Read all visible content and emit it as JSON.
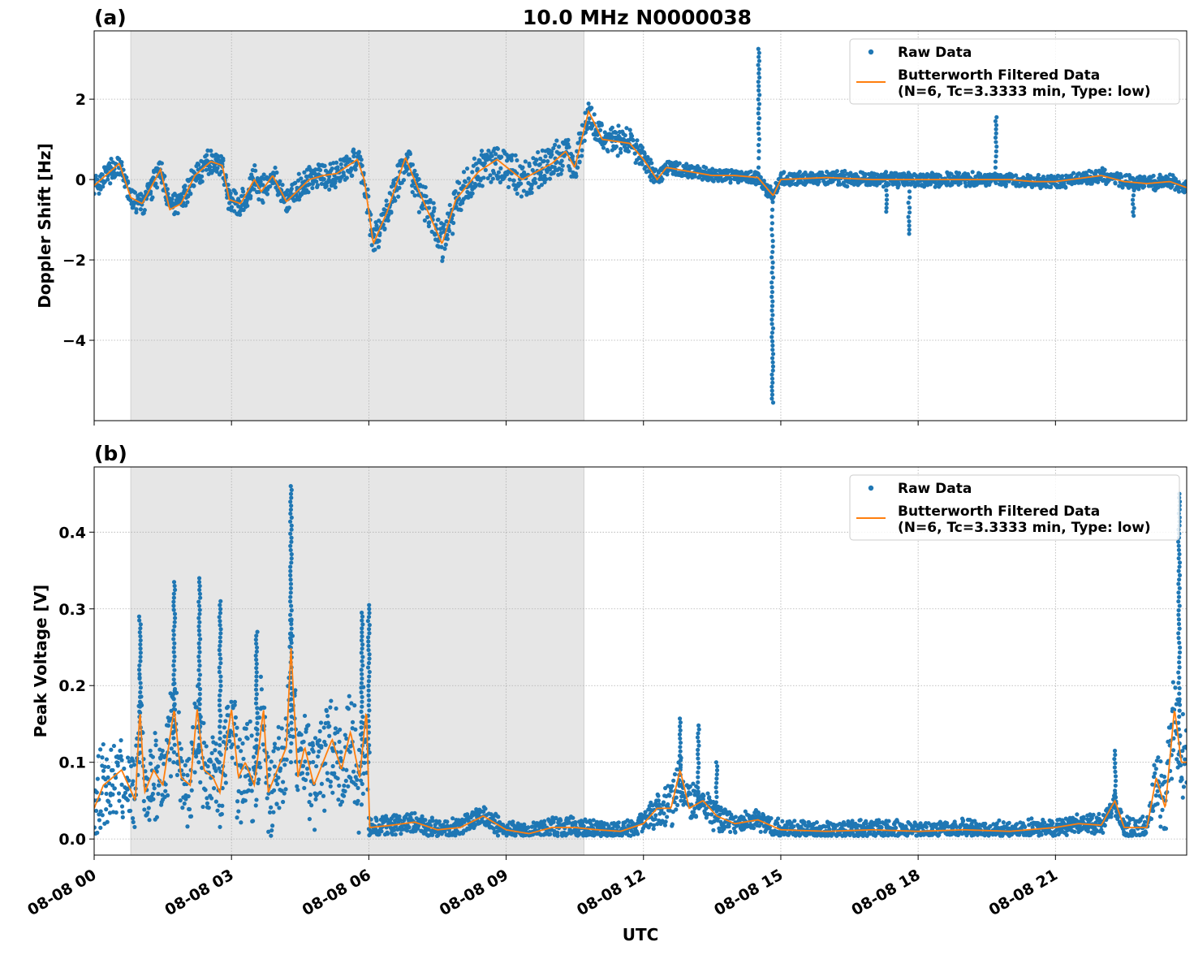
{
  "title": "10.0 MHz N0000038",
  "colors": {
    "raw": "#1f77b4",
    "filtered": "#ff7f0e",
    "shade": "#e6e6e6",
    "grid": "#b0b0b0"
  },
  "chart_data": [
    {
      "type": "scatter+line",
      "panel_label": "(a)",
      "ylabel": "Doppler Shift [Hz]",
      "xlabel": "",
      "xlim": [
        "08-08 00:00",
        "08-08 23:52"
      ],
      "ylim": [
        -6.0,
        3.7
      ],
      "yticks": [
        -4,
        -2,
        0,
        2
      ],
      "ytick_labels": [
        "−4",
        "−2",
        "0",
        "2"
      ],
      "xticks": [
        "00:00",
        "03:00",
        "06:00",
        "09:00",
        "12:00",
        "15:00",
        "18:00",
        "21:00"
      ],
      "grid": true,
      "shaded_interval": [
        "00:48",
        "10:42"
      ],
      "legend": {
        "placement": "top-right",
        "entries": [
          "Raw Data",
          "Butterworth Filtered Data",
          "(N=6, Tc=3.3333 min, Type: low)"
        ]
      },
      "filtered": [
        [
          "00:00",
          -0.15
        ],
        [
          "00:33",
          0.4
        ],
        [
          "00:48",
          -0.45
        ],
        [
          "01:03",
          -0.6
        ],
        [
          "01:27",
          0.25
        ],
        [
          "01:39",
          -0.75
        ],
        [
          "01:54",
          -0.6
        ],
        [
          "02:12",
          0.1
        ],
        [
          "02:33",
          0.45
        ],
        [
          "02:48",
          0.35
        ],
        [
          "02:57",
          -0.5
        ],
        [
          "03:12",
          -0.6
        ],
        [
          "03:30",
          0.0
        ],
        [
          "03:39",
          -0.3
        ],
        [
          "03:54",
          0.1
        ],
        [
          "04:12",
          -0.55
        ],
        [
          "04:42",
          0.0
        ],
        [
          "05:00",
          0.1
        ],
        [
          "05:18",
          0.15
        ],
        [
          "05:45",
          0.5
        ],
        [
          "05:54",
          0.0
        ],
        [
          "06:06",
          -1.6
        ],
        [
          "06:24",
          -0.8
        ],
        [
          "06:48",
          0.55
        ],
        [
          "07:06",
          -0.3
        ],
        [
          "07:36",
          -1.6
        ],
        [
          "07:54",
          -0.5
        ],
        [
          "08:24",
          0.2
        ],
        [
          "08:48",
          0.5
        ],
        [
          "09:21",
          0.0
        ],
        [
          "10:00",
          0.4
        ],
        [
          "10:18",
          0.7
        ],
        [
          "10:30",
          0.3
        ],
        [
          "10:48",
          1.7
        ],
        [
          "11:06",
          1.0
        ],
        [
          "11:42",
          0.9
        ],
        [
          "12:00",
          0.5
        ],
        [
          "12:18",
          0.0
        ],
        [
          "12:30",
          0.3
        ],
        [
          "13:00",
          0.2
        ],
        [
          "13:30",
          0.1
        ],
        [
          "14:00",
          0.1
        ],
        [
          "14:30",
          0.05
        ],
        [
          "14:50",
          -0.4
        ],
        [
          "15:00",
          0.0
        ],
        [
          "16:00",
          0.05
        ],
        [
          "17:00",
          0.0
        ],
        [
          "18:00",
          0.0
        ],
        [
          "19:00",
          0.0
        ],
        [
          "20:00",
          0.0
        ],
        [
          "20:30",
          -0.05
        ],
        [
          "21:00",
          -0.05
        ],
        [
          "22:00",
          0.1
        ],
        [
          "22:30",
          -0.05
        ],
        [
          "23:00",
          -0.1
        ],
        [
          "23:30",
          -0.05
        ],
        [
          "23:52",
          -0.2
        ]
      ],
      "raw_spread": [
        [
          "00:00",
          0.35
        ],
        [
          "06:00",
          0.4
        ],
        [
          "07:36",
          0.6
        ],
        [
          "10:48",
          0.5
        ],
        [
          "12:00",
          0.35
        ],
        [
          "12:30",
          0.2
        ],
        [
          "23:52",
          0.2
        ]
      ],
      "raw_outliers": [
        {
          "x": "14:31",
          "from": 0.3,
          "to": 3.25
        },
        {
          "x": "14:49",
          "from": -0.3,
          "to": -5.55
        },
        {
          "x": "19:42",
          "from": 0.1,
          "to": 1.55
        },
        {
          "x": "17:48",
          "from": -0.1,
          "to": -1.35
        },
        {
          "x": "17:18",
          "from": -0.1,
          "to": -0.8
        },
        {
          "x": "22:42",
          "from": -0.1,
          "to": -0.9
        }
      ]
    },
    {
      "type": "scatter+line",
      "panel_label": "(b)",
      "ylabel": "Peak Voltage [V]",
      "xlabel": "UTC",
      "xlim": [
        "08-08 00:00",
        "08-08 23:52"
      ],
      "ylim": [
        -0.021,
        0.485
      ],
      "yticks": [
        0.0,
        0.1,
        0.2,
        0.3,
        0.4
      ],
      "ytick_labels": [
        "0.0",
        "0.1",
        "0.2",
        "0.3",
        "0.4"
      ],
      "xticks": [
        "00:00",
        "03:00",
        "06:00",
        "09:00",
        "12:00",
        "15:00",
        "18:00",
        "21:00"
      ],
      "xtick_labels": [
        "08-08 00",
        "08-08 03",
        "08-08 06",
        "08-08 09",
        "08-08 12",
        "08-08 15",
        "08-08 18",
        "08-08 21"
      ],
      "grid": true,
      "shaded_interval": [
        "00:48",
        "10:42"
      ],
      "legend": {
        "placement": "top-right",
        "entries": [
          "Raw Data",
          "Butterworth Filtered Data",
          "(N=6, Tc=3.3333 min, Type: low)"
        ]
      },
      "filtered": [
        [
          "00:00",
          0.04
        ],
        [
          "00:12",
          0.07
        ],
        [
          "00:24",
          0.08
        ],
        [
          "00:36",
          0.09
        ],
        [
          "00:45",
          0.07
        ],
        [
          "00:54",
          0.05
        ],
        [
          "01:00",
          0.17
        ],
        [
          "01:06",
          0.06
        ],
        [
          "01:18",
          0.09
        ],
        [
          "01:30",
          0.07
        ],
        [
          "01:45",
          0.17
        ],
        [
          "01:54",
          0.08
        ],
        [
          "02:06",
          0.07
        ],
        [
          "02:15",
          0.17
        ],
        [
          "02:24",
          0.09
        ],
        [
          "02:36",
          0.08
        ],
        [
          "02:45",
          0.06
        ],
        [
          "02:54",
          0.13
        ],
        [
          "03:00",
          0.17
        ],
        [
          "03:09",
          0.08
        ],
        [
          "03:18",
          0.1
        ],
        [
          "03:30",
          0.07
        ],
        [
          "03:42",
          0.17
        ],
        [
          "03:48",
          0.06
        ],
        [
          "04:00",
          0.09
        ],
        [
          "04:12",
          0.12
        ],
        [
          "04:18",
          0.25
        ],
        [
          "04:27",
          0.08
        ],
        [
          "04:36",
          0.12
        ],
        [
          "04:48",
          0.07
        ],
        [
          "05:00",
          0.1
        ],
        [
          "05:12",
          0.13
        ],
        [
          "05:24",
          0.09
        ],
        [
          "05:36",
          0.14
        ],
        [
          "05:48",
          0.08
        ],
        [
          "05:57",
          0.17
        ],
        [
          "06:01",
          0.015
        ],
        [
          "06:30",
          0.018
        ],
        [
          "07:00",
          0.022
        ],
        [
          "07:30",
          0.012
        ],
        [
          "08:00",
          0.015
        ],
        [
          "08:30",
          0.03
        ],
        [
          "09:00",
          0.012
        ],
        [
          "09:30",
          0.007
        ],
        [
          "10:00",
          0.015
        ],
        [
          "10:30",
          0.015
        ],
        [
          "11:00",
          0.012
        ],
        [
          "11:30",
          0.01
        ],
        [
          "12:00",
          0.02
        ],
        [
          "12:18",
          0.04
        ],
        [
          "12:36",
          0.04
        ],
        [
          "12:48",
          0.09
        ],
        [
          "13:00",
          0.04
        ],
        [
          "13:18",
          0.05
        ],
        [
          "13:36",
          0.03
        ],
        [
          "14:00",
          0.02
        ],
        [
          "14:30",
          0.025
        ],
        [
          "15:00",
          0.012
        ],
        [
          "16:00",
          0.01
        ],
        [
          "17:00",
          0.012
        ],
        [
          "18:00",
          0.01
        ],
        [
          "19:00",
          0.012
        ],
        [
          "20:00",
          0.01
        ],
        [
          "21:00",
          0.015
        ],
        [
          "21:30",
          0.02
        ],
        [
          "22:00",
          0.018
        ],
        [
          "22:18",
          0.05
        ],
        [
          "22:30",
          0.015
        ],
        [
          "23:00",
          0.015
        ],
        [
          "23:12",
          0.08
        ],
        [
          "23:24",
          0.04
        ],
        [
          "23:36",
          0.17
        ],
        [
          "23:45",
          0.1
        ],
        [
          "23:52",
          0.1
        ]
      ],
      "raw_spread": [
        [
          "00:00",
          0.06
        ],
        [
          "06:00",
          0.08
        ],
        [
          "06:01",
          0.015
        ],
        [
          "12:00",
          0.015
        ],
        [
          "12:48",
          0.04
        ],
        [
          "14:00",
          0.015
        ],
        [
          "23:00",
          0.015
        ],
        [
          "23:36",
          0.08
        ],
        [
          "23:52",
          0.06
        ]
      ],
      "raw_outliers": [
        {
          "x": "01:00",
          "from": 0.1,
          "to": 0.29
        },
        {
          "x": "01:45",
          "from": 0.1,
          "to": 0.335
        },
        {
          "x": "02:18",
          "from": 0.1,
          "to": 0.34
        },
        {
          "x": "02:45",
          "from": 0.1,
          "to": 0.31
        },
        {
          "x": "03:33",
          "from": 0.1,
          "to": 0.27
        },
        {
          "x": "04:18",
          "from": 0.1,
          "to": 0.46
        },
        {
          "x": "05:51",
          "from": 0.1,
          "to": 0.295
        },
        {
          "x": "06:00",
          "from": 0.1,
          "to": 0.305
        },
        {
          "x": "12:48",
          "from": 0.05,
          "to": 0.157
        },
        {
          "x": "13:12",
          "from": 0.04,
          "to": 0.148
        },
        {
          "x": "13:36",
          "from": 0.03,
          "to": 0.1
        },
        {
          "x": "22:18",
          "from": 0.03,
          "to": 0.115
        },
        {
          "x": "23:42",
          "from": 0.1,
          "to": 0.45
        }
      ]
    }
  ]
}
